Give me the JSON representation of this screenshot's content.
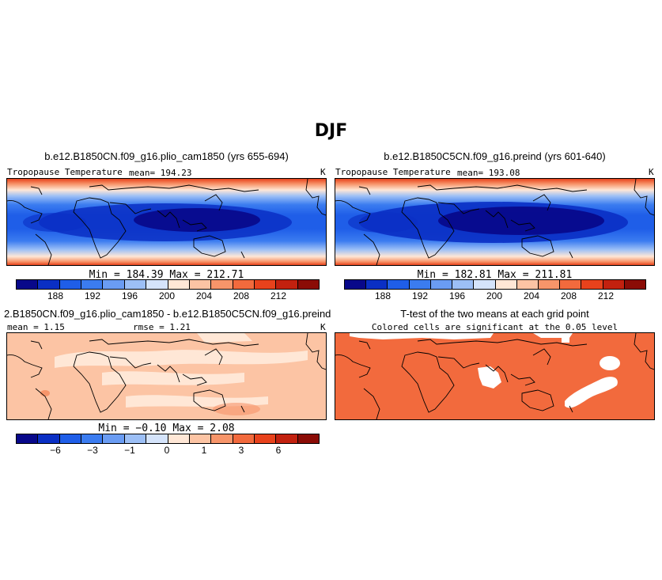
{
  "figure": {
    "season_title": "DJF",
    "variable": "Tropopause Temperature",
    "units": "K"
  },
  "panels": {
    "top_left": {
      "title": "b.e12.B1850CN.f09_g16.plio_cam1850 (yrs 655-694)",
      "variable": "Tropopause Temperature",
      "mean_label": "mean= 194.23",
      "units": "K",
      "minmax": "Min = 184.39 Max = 212.71"
    },
    "top_right": {
      "title": "b.e12.B1850C5CN.f09_g16.preind (yrs 601-640)",
      "variable": "Tropopause Temperature",
      "mean_label": "mean= 193.08",
      "units": "K",
      "minmax": "Min = 182.81 Max = 211.81"
    },
    "bottom_left": {
      "title": "2.B1850CN.f09_g16.plio_cam1850 - b.e12.B1850C5CN.f09_g16.preind",
      "mean_label": "mean = 1.15",
      "rmse_label": "rmse = 1.21",
      "units": "K",
      "minmax": "Min = −0.10 Max = 2.08"
    },
    "bottom_right": {
      "title": "T-test of the two means at each grid point",
      "subtitle": "Colored cells are significant at the 0.05 level"
    }
  },
  "colorbars": {
    "absolute": {
      "colors": [
        "#08088a",
        "#0a2fc4",
        "#1f5ee8",
        "#3b7cf0",
        "#6a9cf3",
        "#9cbff6",
        "#d5e4fb",
        "#ffe7d6",
        "#fcc4a4",
        "#f7956a",
        "#f26a3d",
        "#e8421c",
        "#c2210f",
        "#8b0c06"
      ],
      "tick_labels": [
        "188",
        "192",
        "196",
        "200",
        "204",
        "208",
        "212"
      ]
    },
    "difference": {
      "colors": [
        "#08088a",
        "#0a2fc4",
        "#1f5ee8",
        "#3b7cf0",
        "#6a9cf3",
        "#9cbff6",
        "#d5e4fb",
        "#ffe7d6",
        "#fcc4a4",
        "#f7956a",
        "#f26a3d",
        "#e8421c",
        "#c2210f",
        "#8b0c06"
      ],
      "tick_labels": [
        "−6",
        "−3",
        "−1",
        "0",
        "1",
        "3",
        "6"
      ]
    }
  },
  "chart_data": [
    {
      "type": "heatmap",
      "title": "b.e12.B1850CN.f09_g16.plio_cam1850 (yrs 655-694)",
      "subtitle": "Tropopause Temperature",
      "mean": 194.23,
      "min": 184.39,
      "max": 212.71,
      "units": "K",
      "contour_levels": [
        186,
        188,
        190,
        192,
        194,
        196,
        198,
        200,
        202,
        204,
        206,
        208,
        210,
        212
      ]
    },
    {
      "type": "heatmap",
      "title": "b.e12.B1850C5CN.f09_g16.preind (yrs 601-640)",
      "subtitle": "Tropopause Temperature",
      "mean": 193.08,
      "min": 182.81,
      "max": 211.81,
      "units": "K",
      "contour_levels": [
        186,
        188,
        190,
        192,
        194,
        196,
        198,
        200,
        202,
        204,
        206,
        208,
        210,
        212
      ]
    },
    {
      "type": "heatmap",
      "title": "2.B1850CN.f09_g16.plio_cam1850 - b.e12.B1850C5CN.f09_g16.preind",
      "mean": 1.15,
      "rmse": 1.21,
      "min": -0.1,
      "max": 2.08,
      "units": "K",
      "contour_levels": [
        -8,
        -6,
        -4,
        -3,
        -2,
        -1,
        -0.5,
        0,
        0.5,
        1,
        2,
        3,
        4,
        6,
        8
      ]
    },
    {
      "type": "heatmap",
      "title": "T-test of the two means at each grid point",
      "subtitle": "Colored cells are significant at the 0.05 level",
      "significance_level": 0.05
    }
  ]
}
